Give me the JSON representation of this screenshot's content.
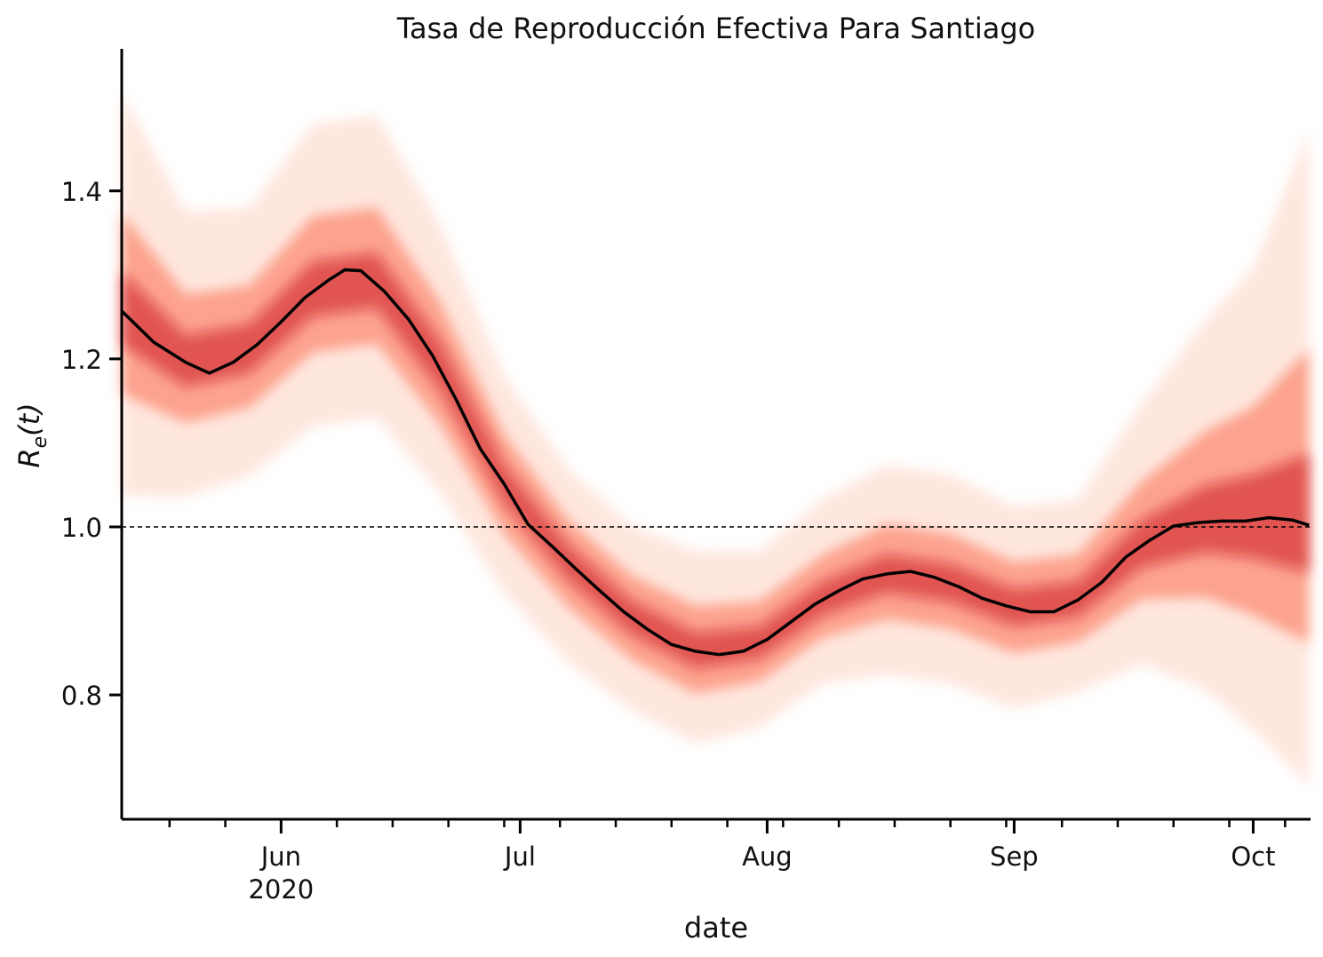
{
  "chart_data": {
    "type": "line",
    "title": "Tasa de Reproducción Efectiva Para Santiago",
    "xlabel": "date",
    "ylabel": [
      "R",
      "e",
      "(t)"
    ],
    "xlim": [
      -20,
      129.2
    ],
    "ylim": [
      0.652,
      1.569
    ],
    "xticks": [
      {
        "value": 0,
        "label": "Jun\n2020"
      },
      {
        "value": 30,
        "label": "Jul"
      },
      {
        "value": 61,
        "label": "Aug"
      },
      {
        "value": 92,
        "label": "Sep"
      },
      {
        "value": 122,
        "label": "Oct"
      }
    ],
    "xminorticks": [
      -14,
      -7,
      7,
      14,
      21,
      28,
      35,
      42,
      49,
      56,
      63,
      70,
      77,
      84,
      91,
      98,
      105,
      112,
      119,
      126
    ],
    "yticks": [
      0.8,
      {
        "value": 1,
        "label": "1.0"
      },
      1.2,
      1.4
    ],
    "hline": 1,
    "x": [
      -20,
      -16,
      -12,
      -9,
      -6,
      -3,
      0,
      3,
      6,
      8,
      10,
      13,
      16,
      19,
      22,
      25,
      28,
      31,
      34,
      37,
      40,
      43,
      46,
      49,
      52,
      55,
      58,
      61,
      64,
      67,
      70,
      73,
      76,
      79,
      82,
      85,
      88,
      91,
      94,
      97,
      100,
      103,
      106,
      109,
      112,
      115,
      118,
      121,
      124,
      127,
      129
    ],
    "series": [
      {
        "color": "#000000",
        "values": [
          1.257,
          1.22,
          1.196,
          1.183,
          1.196,
          1.217,
          1.244,
          1.273,
          1.294,
          1.306,
          1.305,
          1.28,
          1.247,
          1.204,
          1.151,
          1.093,
          1.051,
          1.003,
          0.977,
          0.95,
          0.924,
          0.899,
          0.878,
          0.86,
          0.852,
          0.848,
          0.852,
          0.866,
          0.887,
          0.908,
          0.924,
          0.938,
          0.944,
          0.947,
          0.94,
          0.929,
          0.915,
          0.906,
          0.899,
          0.899,
          0.913,
          0.934,
          0.964,
          0.984,
          1.001,
          1.005,
          1.007,
          1.007,
          1.011,
          1.008,
          1.002
        ]
      }
    ],
    "bands": {
      "x": [
        -20,
        -12,
        -4,
        4,
        12,
        20,
        28,
        36,
        44,
        52,
        60,
        68,
        76,
        84,
        92,
        100,
        108,
        116,
        122,
        129
      ],
      "series": [
        {
          "color": "#fcbba1",
          "upper": [
            1.517,
            1.376,
            1.38,
            1.48,
            1.49,
            1.36,
            1.181,
            1.069,
            1.002,
            0.972,
            0.971,
            1.033,
            1.074,
            1.063,
            1.024,
            1.033,
            1.147,
            1.246,
            1.308,
            1.472
          ],
          "lower": [
            1.037,
            1.036,
            1.06,
            1.12,
            1.13,
            1.04,
            0.921,
            0.839,
            0.782,
            0.742,
            0.761,
            0.813,
            0.824,
            0.813,
            0.784,
            0.803,
            0.837,
            0.806,
            0.758,
            0.692
          ]
        },
        {
          "color": "#fb6a4a",
          "upper": [
            1.374,
            1.277,
            1.287,
            1.37,
            1.38,
            1.267,
            1.11,
            1.009,
            0.942,
            0.906,
            0.911,
            0.967,
            1.003,
            0.992,
            0.958,
            0.967,
            1.054,
            1.114,
            1.143,
            1.212
          ],
          "lower": [
            1.158,
            1.124,
            1.142,
            1.208,
            1.218,
            1.122,
            0.992,
            0.905,
            0.842,
            0.802,
            0.816,
            0.868,
            0.89,
            0.879,
            0.85,
            0.863,
            0.914,
            0.916,
            0.895,
            0.862
          ]
        },
        {
          "color": "#cb181d",
          "upper": [
            1.304,
            1.228,
            1.241,
            1.316,
            1.326,
            1.221,
            1.074,
            0.979,
            0.912,
            0.874,
            0.881,
            0.935,
            0.967,
            0.956,
            0.926,
            0.935,
            1.008,
            1.049,
            1.062,
            1.087
          ],
          "lower": [
            1.217,
            1.167,
            1.183,
            1.251,
            1.261,
            1.163,
            1.028,
            0.937,
            0.872,
            0.832,
            0.843,
            0.895,
            0.922,
            0.911,
            0.882,
            0.893,
            0.952,
            0.97,
            0.963,
            0.946
          ]
        }
      ]
    }
  }
}
